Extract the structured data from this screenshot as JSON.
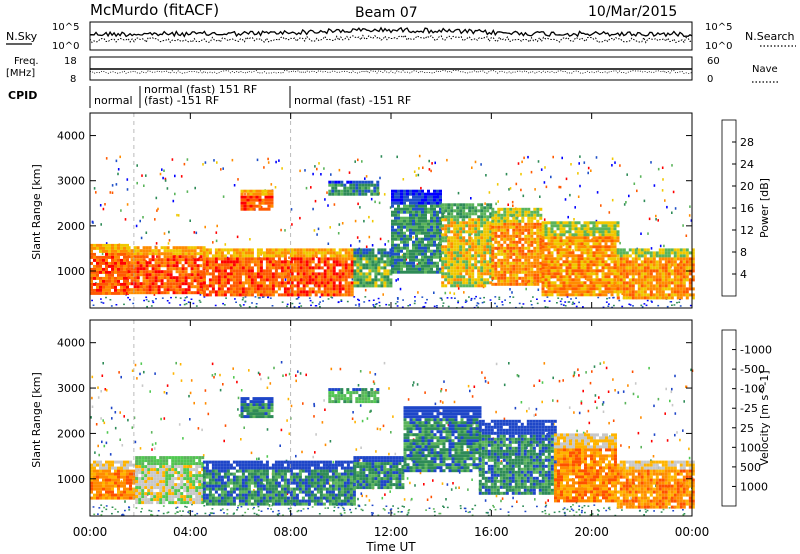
{
  "header": {
    "station": "McMurdo (fitACF)",
    "beam": "Beam 07",
    "date": "10/Mar/2015"
  },
  "top_panel": {
    "left_label": "N.Sky",
    "right_label": "N.Search",
    "left_ticks": [
      "10^5",
      "10^0"
    ],
    "right_ticks": [
      "10^5",
      "10^0"
    ]
  },
  "freq_panel": {
    "left_label_1": "Freq.",
    "left_label_2": "[MHz]",
    "right_label": "Nave",
    "left_ticks": [
      "18",
      "8"
    ],
    "right_ticks": [
      "60",
      "0"
    ]
  },
  "cpid": {
    "label": "CPID",
    "segments": [
      {
        "start_hour": 0.0,
        "text": "normal"
      },
      {
        "start_hour": 1.75,
        "text_top": "normal (fast) 151 RF",
        "text_bottom": "(fast) -151 RF"
      },
      {
        "start_hour": 8.0,
        "text": "normal (fast) -151 RF"
      }
    ]
  },
  "x_axis": {
    "label": "Time UT",
    "range_hours": [
      0,
      24
    ],
    "ticks": [
      "00:00",
      "04:00",
      "08:00",
      "12:00",
      "16:00",
      "20:00",
      "00:00"
    ],
    "tick_hours": [
      0,
      4,
      8,
      12,
      16,
      20,
      24
    ]
  },
  "chart_data": [
    {
      "type": "heatmap",
      "title": "",
      "xlabel": "Time UT",
      "ylabel": "Slant Range [km]",
      "xlim": [
        0,
        24
      ],
      "ylim": [
        180,
        4500
      ],
      "yticks": [
        1000,
        2000,
        3000,
        4000
      ],
      "colorbar": {
        "label": "Power [dB]",
        "ticks": [
          "4",
          "8",
          "12",
          "16",
          "20",
          "24",
          "28"
        ],
        "colors": [
          "#0000ff",
          "#1e50c8",
          "#2e8b57",
          "#5ab45a",
          "#f0c800",
          "#ff8c00",
          "#ff5a00",
          "#ff0000"
        ]
      },
      "regions": [
        {
          "t0": 0.0,
          "t1": 1.5,
          "r0": 500,
          "r1": 1600,
          "level": 6
        },
        {
          "t0": 1.5,
          "t1": 4.5,
          "r0": 500,
          "r1": 1550,
          "level": 6
        },
        {
          "t0": 4.5,
          "t1": 8.0,
          "r0": 450,
          "r1": 1500,
          "level": 6
        },
        {
          "t0": 8.0,
          "t1": 10.5,
          "r0": 450,
          "r1": 1500,
          "level": 6
        },
        {
          "t0": 10.5,
          "t1": 12.0,
          "r0": 700,
          "r1": 1500,
          "level": 3
        },
        {
          "t0": 12.0,
          "t1": 14.0,
          "r0": 1000,
          "r1": 2800,
          "level": 2
        },
        {
          "t0": 14.0,
          "t1": 16.0,
          "r0": 700,
          "r1": 2500,
          "level": 4
        },
        {
          "t0": 16.0,
          "t1": 18.0,
          "r0": 700,
          "r1": 2400,
          "level": 5
        },
        {
          "t0": 18.0,
          "t1": 21.0,
          "r0": 500,
          "r1": 2100,
          "level": 5
        },
        {
          "t0": 21.0,
          "t1": 24.0,
          "r0": 400,
          "r1": 1500,
          "level": 5
        },
        {
          "t0": 6.0,
          "t1": 7.2,
          "r0": 2400,
          "r1": 2800,
          "level": 6
        },
        {
          "t0": 9.5,
          "t1": 11.5,
          "r0": 2700,
          "r1": 3000,
          "level": 2
        }
      ]
    },
    {
      "type": "heatmap",
      "title": "",
      "xlabel": "Time UT",
      "ylabel": "Slant Range [km]",
      "xlim": [
        0,
        24
      ],
      "ylim": [
        180,
        4500
      ],
      "yticks": [
        1000,
        2000,
        3000,
        4000
      ],
      "colorbar": {
        "label": "Velocity [m s^-1]",
        "ticks": [
          "1000",
          "500",
          "100",
          "25",
          "-25",
          "-100",
          "-500",
          "-1000"
        ],
        "colors": [
          "#1e46c8",
          "#2e8b57",
          "#5ab45a",
          "#50c850",
          "#c8c8c8",
          "#ffb400",
          "#ff8c00",
          "#ff5000",
          "#ff0000"
        ]
      },
      "regions": [
        {
          "t0": 0.0,
          "t1": 1.8,
          "r0": 600,
          "r1": 1400,
          "level": 6
        },
        {
          "t0": 1.8,
          "t1": 4.5,
          "r0": 500,
          "r1": 1500,
          "level": 4
        },
        {
          "t0": 4.5,
          "t1": 10.5,
          "r0": 450,
          "r1": 1400,
          "level": 1
        },
        {
          "t0": 10.5,
          "t1": 12.5,
          "r0": 800,
          "r1": 1500,
          "level": 1
        },
        {
          "t0": 12.5,
          "t1": 15.5,
          "r0": 1200,
          "r1": 2600,
          "level": 1
        },
        {
          "t0": 15.5,
          "t1": 18.5,
          "r0": 700,
          "r1": 2300,
          "level": 1
        },
        {
          "t0": 18.5,
          "t1": 21.0,
          "r0": 500,
          "r1": 2000,
          "level": 6
        },
        {
          "t0": 21.0,
          "t1": 24.0,
          "r0": 400,
          "r1": 1400,
          "level": 6
        },
        {
          "t0": 6.0,
          "t1": 7.2,
          "r0": 2400,
          "r1": 2800,
          "level": 1
        },
        {
          "t0": 9.5,
          "t1": 11.5,
          "r0": 2700,
          "r1": 3000,
          "level": 2
        }
      ]
    }
  ]
}
